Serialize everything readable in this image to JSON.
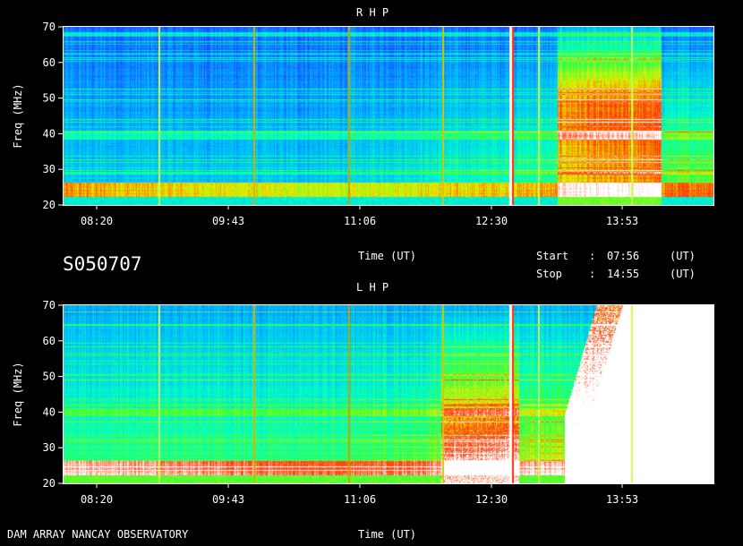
{
  "chart_data": [
    {
      "type": "heatmap",
      "title": "R H P",
      "ylabel": "Freq (MHz)",
      "xlabel": "Time (UT)",
      "y_ticks": [
        20,
        30,
        40,
        50,
        60,
        70
      ],
      "x_ticks": [
        "08:20",
        "09:43",
        "11:06",
        "12:30",
        "13:53"
      ],
      "ylim": [
        20,
        70
      ],
      "xlim": [
        "07:56",
        "14:55"
      ],
      "colormap": [
        "#1a1aa0",
        "#1e3cff",
        "#00b4ff",
        "#00ffc8",
        "#3cff3c",
        "#e6f000",
        "#ff3000",
        "#ffffff"
      ]
    },
    {
      "type": "heatmap",
      "title": "L H P",
      "ylabel": "Freq (MHz)",
      "xlabel": "Time (UT)",
      "y_ticks": [
        20,
        30,
        40,
        50,
        60,
        70
      ],
      "x_ticks": [
        "08:20",
        "09:43",
        "11:06",
        "12:30",
        "13:53"
      ],
      "ylim": [
        20,
        70
      ],
      "xlim": [
        "07:56",
        "14:55"
      ],
      "colormap": [
        "#1a1aa0",
        "#1e3cff",
        "#00b4ff",
        "#00ffc8",
        "#3cff3c",
        "#e6f000",
        "#ff3000",
        "#ffffff"
      ]
    }
  ],
  "header": {
    "session_id": "S050707",
    "start_label": "Start",
    "stop_label": "Stop",
    "colon": ":",
    "start_time": "07:56",
    "stop_time": "14:55",
    "unit": "(UT)"
  },
  "footer": {
    "observatory": "DAM ARRAY  NANCAY OBSERVATORY"
  }
}
